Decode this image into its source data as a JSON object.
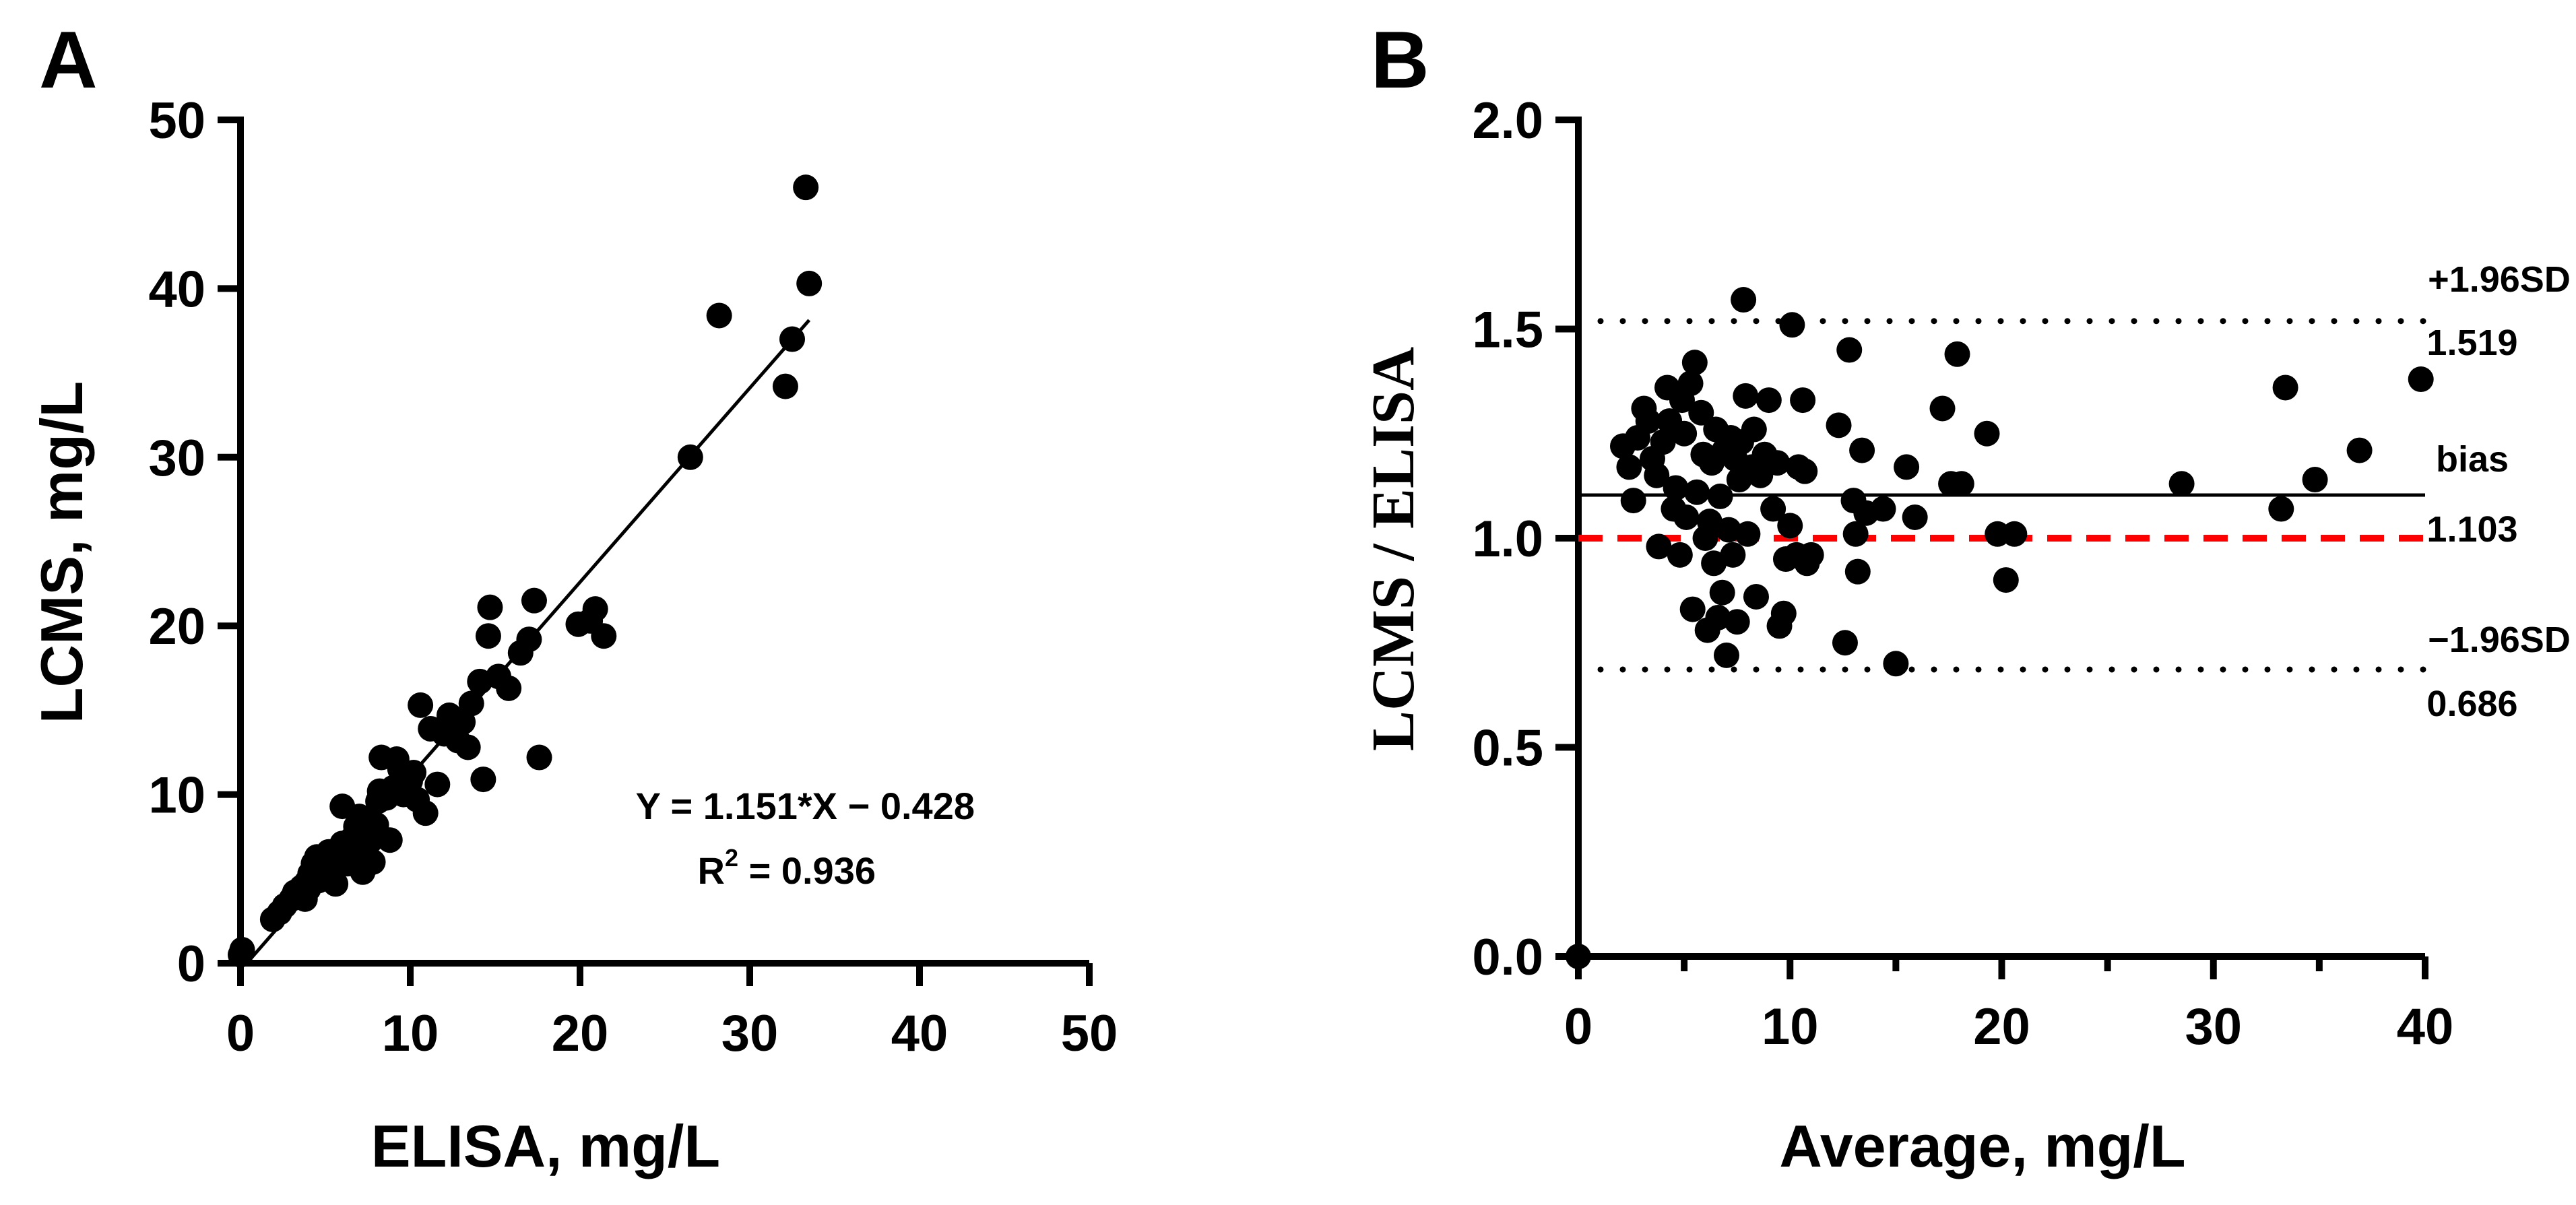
{
  "chart_data": [
    {
      "type": "scatter",
      "panel_label": "A",
      "xlabel": "ELISA, mg/L",
      "ylabel": "LCMS, mg/L",
      "xlim": [
        0,
        50
      ],
      "ylim": [
        0,
        50
      ],
      "xticks": [
        "0",
        "10",
        "20",
        "30",
        "40",
        "50"
      ],
      "yticks": [
        "0",
        "10",
        "20",
        "30",
        "40",
        "50"
      ],
      "equation": "Y = 1.151*X − 0.428",
      "r2_prefix": "R",
      "r2_sup": "2",
      "r2_value": " = 0.936",
      "fit": {
        "slope": 1.151,
        "intercept": -0.428,
        "x_range": [
          0,
          33.5
        ]
      },
      "points": [
        [
          0,
          0.5
        ],
        [
          0.1,
          0.8
        ],
        [
          1.9,
          2.6
        ],
        [
          2.3,
          3.0
        ],
        [
          2.6,
          3.4
        ],
        [
          3.0,
          3.8
        ],
        [
          3.2,
          4.2
        ],
        [
          3.6,
          4.5
        ],
        [
          3.9,
          4.8
        ],
        [
          4.1,
          5.3
        ],
        [
          4.3,
          5.9
        ],
        [
          4.5,
          6.3
        ],
        [
          3.8,
          3.8
        ],
        [
          4.0,
          4.4
        ],
        [
          4.6,
          4.9
        ],
        [
          4.9,
          5.6
        ],
        [
          5.0,
          6.1
        ],
        [
          5.2,
          6.6
        ],
        [
          5.4,
          5.2
        ],
        [
          5.6,
          4.7
        ],
        [
          5.8,
          6.4
        ],
        [
          6.0,
          7.1
        ],
        [
          6.0,
          9.3
        ],
        [
          6.2,
          6.2
        ],
        [
          6.3,
          5.9
        ],
        [
          6.5,
          6.8
        ],
        [
          6.6,
          7.4
        ],
        [
          6.8,
          8.1
        ],
        [
          7.0,
          6.3
        ],
        [
          7.0,
          8.7
        ],
        [
          7.2,
          5.4
        ],
        [
          7.4,
          6.6
        ],
        [
          7.5,
          8.4
        ],
        [
          7.6,
          7.2
        ],
        [
          7.8,
          6.0
        ],
        [
          8.0,
          8.2
        ],
        [
          8.1,
          9.6
        ],
        [
          8.2,
          10.2
        ],
        [
          8.3,
          12.2
        ],
        [
          8.6,
          9.8
        ],
        [
          8.8,
          7.3
        ],
        [
          9.0,
          10.4
        ],
        [
          9.2,
          12.1
        ],
        [
          9.4,
          11.5
        ],
        [
          9.6,
          10.0
        ],
        [
          10.0,
          10.8
        ],
        [
          10.2,
          11.3
        ],
        [
          10.4,
          9.7
        ],
        [
          10.6,
          15.3
        ],
        [
          10.9,
          8.9
        ],
        [
          11.2,
          13.9
        ],
        [
          11.6,
          10.6
        ],
        [
          12.0,
          13.6
        ],
        [
          12.3,
          14.7
        ],
        [
          12.8,
          13.2
        ],
        [
          13.1,
          14.3
        ],
        [
          13.4,
          12.8
        ],
        [
          13.6,
          15.4
        ],
        [
          14.1,
          16.7
        ],
        [
          14.3,
          10.9
        ],
        [
          14.6,
          19.4
        ],
        [
          14.7,
          21.1
        ],
        [
          15.2,
          17.0
        ],
        [
          15.8,
          16.3
        ],
        [
          16.5,
          18.4
        ],
        [
          17.0,
          19.2
        ],
        [
          17.3,
          21.5
        ],
        [
          17.6,
          12.2
        ],
        [
          19.9,
          20.1
        ],
        [
          20.6,
          20.3
        ],
        [
          20.9,
          21.0
        ],
        [
          21.4,
          19.4
        ],
        [
          26.5,
          30.0
        ],
        [
          28.2,
          38.4
        ],
        [
          32.1,
          34.2
        ],
        [
          32.5,
          37.0
        ],
        [
          33.3,
          46.0
        ],
        [
          33.5,
          40.3
        ]
      ]
    },
    {
      "type": "scatter",
      "panel_label": "B",
      "xlabel": "Average, mg/L",
      "ylabel": "LCMS / ELISA",
      "xlim": [
        0,
        40
      ],
      "ylim": [
        0,
        2.0
      ],
      "xticks": [
        "0",
        "10",
        "20",
        "30",
        "40"
      ],
      "yticks": [
        "0.0",
        "0.5",
        "1.0",
        "1.5",
        "2.0"
      ],
      "reference_lines": [
        {
          "label": "+1.96SD",
          "value_label": "1.519",
          "y": 1.519,
          "style": "dotted",
          "color": "#000000"
        },
        {
          "label": "bias",
          "value_label": "1.103",
          "y": 1.103,
          "style": "solid",
          "color": "#000000"
        },
        {
          "label": "−1.96SD",
          "value_label": "0.686",
          "y": 0.686,
          "style": "dotted",
          "color": "#000000"
        },
        {
          "label": "",
          "value_label": "",
          "y": 1.0,
          "style": "dashed",
          "color": "#ff0000"
        }
      ],
      "points": [
        [
          0.0,
          0.0
        ],
        [
          2.1,
          1.22
        ],
        [
          2.4,
          1.17
        ],
        [
          2.6,
          1.09
        ],
        [
          2.8,
          1.24
        ],
        [
          3.1,
          1.31
        ],
        [
          3.3,
          1.28
        ],
        [
          3.5,
          1.19
        ],
        [
          3.7,
          1.15
        ],
        [
          3.8,
          0.98
        ],
        [
          4.0,
          1.23
        ],
        [
          4.2,
          1.36
        ],
        [
          4.3,
          1.28
        ],
        [
          4.5,
          1.07
        ],
        [
          4.6,
          1.12
        ],
        [
          4.8,
          0.96
        ],
        [
          4.9,
          1.33
        ],
        [
          5.0,
          1.25
        ],
        [
          5.1,
          1.05
        ],
        [
          5.3,
          1.37
        ],
        [
          5.4,
          0.83
        ],
        [
          5.5,
          1.42
        ],
        [
          5.6,
          1.11
        ],
        [
          5.8,
          1.3
        ],
        [
          5.9,
          1.2
        ],
        [
          6.0,
          1.0
        ],
        [
          6.1,
          0.78
        ],
        [
          6.2,
          1.04
        ],
        [
          6.3,
          1.18
        ],
        [
          6.4,
          0.94
        ],
        [
          6.5,
          1.26
        ],
        [
          6.6,
          0.81
        ],
        [
          6.7,
          1.1
        ],
        [
          6.8,
          0.87
        ],
        [
          6.9,
          1.21
        ],
        [
          7.0,
          0.72
        ],
        [
          7.1,
          1.02
        ],
        [
          7.2,
          1.24
        ],
        [
          7.3,
          0.96
        ],
        [
          7.4,
          1.19
        ],
        [
          7.5,
          0.8
        ],
        [
          7.6,
          1.14
        ],
        [
          7.7,
          1.23
        ],
        [
          7.8,
          1.57
        ],
        [
          7.9,
          1.34
        ],
        [
          8.0,
          1.01
        ],
        [
          8.2,
          1.17
        ],
        [
          8.3,
          1.26
        ],
        [
          8.4,
          0.86
        ],
        [
          8.6,
          1.15
        ],
        [
          8.8,
          1.2
        ],
        [
          9.0,
          1.33
        ],
        [
          9.2,
          1.07
        ],
        [
          9.4,
          1.18
        ],
        [
          9.5,
          0.79
        ],
        [
          9.7,
          0.82
        ],
        [
          9.8,
          0.95
        ],
        [
          10.0,
          1.03
        ],
        [
          10.1,
          1.51
        ],
        [
          10.3,
          0.96
        ],
        [
          10.4,
          1.17
        ],
        [
          10.6,
          1.33
        ],
        [
          10.7,
          1.16
        ],
        [
          10.8,
          0.94
        ],
        [
          11.0,
          0.96
        ],
        [
          12.3,
          1.27
        ],
        [
          12.6,
          0.75
        ],
        [
          12.8,
          1.45
        ],
        [
          13.0,
          1.09
        ],
        [
          13.1,
          1.01
        ],
        [
          13.2,
          0.92
        ],
        [
          13.4,
          1.21
        ],
        [
          13.6,
          1.06
        ],
        [
          14.4,
          1.07
        ],
        [
          15.0,
          0.7
        ],
        [
          15.5,
          1.17
        ],
        [
          15.9,
          1.05
        ],
        [
          17.2,
          1.31
        ],
        [
          17.6,
          1.13
        ],
        [
          17.9,
          1.44
        ],
        [
          18.1,
          1.13
        ],
        [
          19.3,
          1.25
        ],
        [
          19.8,
          1.01
        ],
        [
          20.2,
          0.9
        ],
        [
          20.6,
          1.01
        ],
        [
          28.5,
          1.13
        ],
        [
          33.2,
          1.07
        ],
        [
          33.4,
          1.36
        ],
        [
          34.8,
          1.14
        ],
        [
          36.9,
          1.21
        ],
        [
          39.8,
          1.38
        ]
      ]
    }
  ]
}
